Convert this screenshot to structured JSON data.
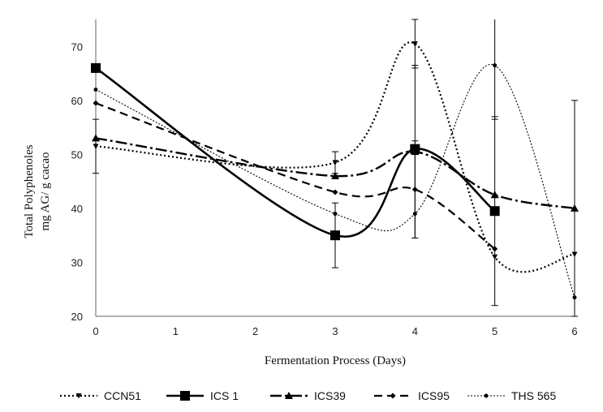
{
  "chart_data": {
    "type": "line",
    "title": "",
    "xlabel": "Fermentation Process (Days)",
    "ylabel_lines": [
      "Total Polyphenoles",
      "mg AG/ g cacao"
    ],
    "xlim": [
      0,
      6
    ],
    "ylim": [
      20,
      75
    ],
    "x_ticks": [
      0,
      1,
      2,
      3,
      4,
      5,
      6
    ],
    "y_ticks": [
      20,
      30,
      40,
      50,
      60,
      70
    ],
    "grid": false,
    "legend_position": "bottom",
    "series": [
      {
        "name": "CCN51",
        "style": "dotted",
        "marker": "triangle-down-small",
        "x": [
          0,
          3,
          4,
          5,
          6
        ],
        "y": [
          51.5,
          48.5,
          70.5,
          31,
          31.5
        ],
        "err": [
          5,
          2,
          4.5,
          0,
          0
        ]
      },
      {
        "name": "ICS 1",
        "style": "solid-thick",
        "marker": "square",
        "x": [
          0,
          3,
          4,
          5
        ],
        "y": [
          66,
          35,
          51,
          39.5
        ],
        "err": [
          0,
          6,
          0,
          17.5
        ]
      },
      {
        "name": "ICS39",
        "style": "dashdot",
        "marker": "triangle",
        "x": [
          0,
          3,
          4,
          5,
          6
        ],
        "y": [
          53,
          46,
          50.5,
          42.5,
          40
        ],
        "err": [
          0,
          0,
          16,
          0,
          20
        ]
      },
      {
        "name": "ICS95",
        "style": "dashed",
        "marker": "diamond",
        "x": [
          0,
          3,
          4,
          5
        ],
        "y": [
          59.5,
          43,
          43.5,
          32.5
        ],
        "err": [
          0,
          0,
          9,
          0
        ]
      },
      {
        "name": "THS 565",
        "style": "thin-dotted",
        "marker": "circle",
        "x": [
          0,
          3,
          4,
          5,
          6
        ],
        "y": [
          62,
          39,
          39,
          66.5,
          23.5
        ],
        "err": [
          0,
          0,
          0,
          10,
          0
        ]
      }
    ]
  }
}
